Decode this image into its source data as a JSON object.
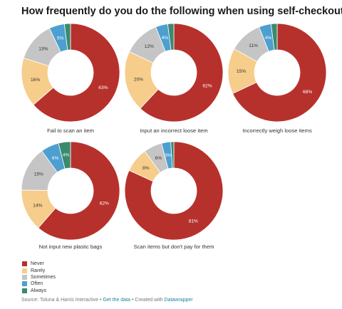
{
  "title": "How frequently do you do the following when using self-checkouts?",
  "colors": {
    "Never": "#b7312c",
    "Rarely": "#f6cd8b",
    "Sometimes": "#c5c5c5",
    "Often": "#4d9fd0",
    "Always": "#3a8a6e"
  },
  "chart_data": [
    {
      "type": "pie",
      "title": "Fail to scan an item",
      "categories": [
        "Never",
        "Rarely",
        "Sometimes",
        "Often",
        "Always"
      ],
      "values": [
        63,
        16,
        13,
        5,
        2
      ],
      "labels": [
        "63%",
        "16%",
        "13%",
        "5%",
        ""
      ]
    },
    {
      "type": "pie",
      "title": "Input an incorrect loose item",
      "categories": [
        "Never",
        "Rarely",
        "Sometimes",
        "Often",
        "Always"
      ],
      "values": [
        62,
        20,
        12,
        4,
        2
      ],
      "labels": [
        "62%",
        "20%",
        "12%",
        "4%",
        ""
      ]
    },
    {
      "type": "pie",
      "title": "Incorrectly weigh loose items",
      "categories": [
        "Never",
        "Rarely",
        "Sometimes",
        "Often",
        "Always"
      ],
      "values": [
        68,
        15,
        11,
        4,
        2
      ],
      "labels": [
        "68%",
        "15%",
        "11%",
        "4%",
        ""
      ]
    },
    {
      "type": "pie",
      "title": "Not input new plastic bags",
      "categories": [
        "Never",
        "Rarely",
        "Sometimes",
        "Often",
        "Always"
      ],
      "values": [
        62,
        14,
        15,
        6,
        4
      ],
      "labels": [
        "62%",
        "14%",
        "15%",
        "6%",
        "4%"
      ]
    },
    {
      "type": "pie",
      "title": "Scan items but don't pay for them",
      "categories": [
        "Never",
        "Rarely",
        "Sometimes",
        "Often",
        "Always"
      ],
      "values": [
        81,
        8,
        6,
        3,
        1
      ],
      "labels": [
        "81%",
        "8%",
        "6%",
        "3%",
        ""
      ]
    }
  ],
  "legend": [
    "Never",
    "Rarely",
    "Sometimes",
    "Often",
    "Always"
  ],
  "footer": {
    "source": "Source: Toluna & Harris Interactive",
    "sep1": " • ",
    "get_data": "Get the data",
    "sep2": " • Created with ",
    "tool": "Datawrapper"
  }
}
